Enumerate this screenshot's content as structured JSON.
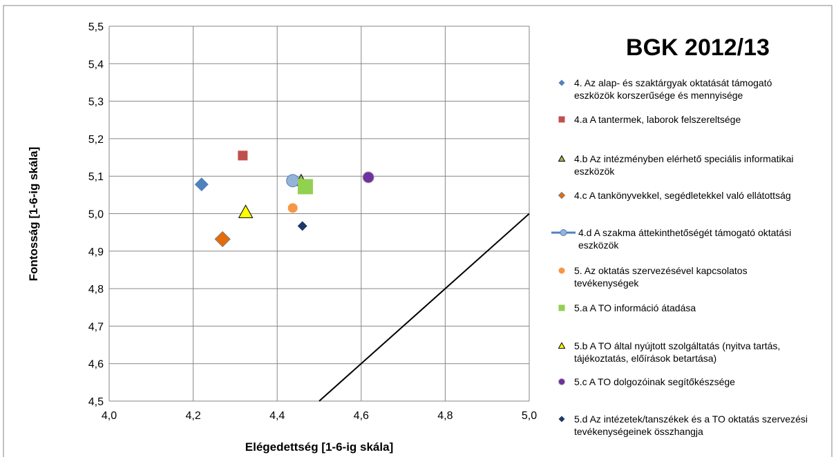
{
  "chart_data": {
    "type": "scatter",
    "title": "BGK 2012/13",
    "x_label": "Elégedettség [1-6-ig skála]",
    "y_label": "Fontosság [1-6-ig skála]",
    "xlim": [
      4.0,
      5.0
    ],
    "xticks": [
      {
        "value": 4.0,
        "label": "4,0"
      },
      {
        "value": 4.2,
        "label": "4,2"
      },
      {
        "value": 4.4,
        "label": "4,4"
      },
      {
        "value": 4.6,
        "label": "4,6"
      },
      {
        "value": 4.8,
        "label": "4,8"
      },
      {
        "value": 5.0,
        "label": "5,0"
      }
    ],
    "ylim": [
      4.5,
      5.5
    ],
    "yticks": [
      {
        "value": 4.5,
        "label": "4,5"
      },
      {
        "value": 4.6,
        "label": "4,6"
      },
      {
        "value": 4.7,
        "label": "4,7"
      },
      {
        "value": 4.8,
        "label": "4,8"
      },
      {
        "value": 4.9,
        "label": "4,9"
      },
      {
        "value": 5.0,
        "label": "5,0"
      },
      {
        "value": 5.1,
        "label": "5,1"
      },
      {
        "value": 5.2,
        "label": "5,2"
      },
      {
        "value": 5.3,
        "label": "5,3"
      },
      {
        "value": 5.4,
        "label": "5,4"
      },
      {
        "value": 5.5,
        "label": "5,5"
      }
    ],
    "grid": true,
    "legend": "right",
    "series": [
      {
        "name": "4. Az alap- és szaktárgyak oktatását támogató eszközök korszerűsége és mennyisége",
        "color": "#4f81bd",
        "marker": "diamond",
        "x": [
          4.22
        ],
        "values": [
          5.078
        ]
      },
      {
        "name": "4.a  A tantermek, laborok felszereltsége",
        "color": "#c0504d",
        "marker": "square",
        "x": [
          4.318
        ],
        "values": [
          5.155
        ]
      },
      {
        "name": "4.b  Az intézményben elérhető speciális informatikai eszközök",
        "color": "#9bbb59",
        "marker": "triangle",
        "x": [
          4.457
        ],
        "values": [
          5.088
        ]
      },
      {
        "name": "4.c  A tankönyvekkel, segédletekkel való ellátottság",
        "color": "#e46c0a",
        "marker": "diamond",
        "x": [
          4.27
        ],
        "values": [
          4.932
        ]
      },
      {
        "name": "4.d  A szakma áttekinthetőségét támogató oktatási eszközök",
        "color": "#95b3d7",
        "marker": "circle",
        "legend_line": true,
        "x": [
          4.437
        ],
        "values": [
          5.088
        ]
      },
      {
        "name": "5. Az oktatás szervezésével kapcsolatos tevékenységek",
        "color": "#f79646",
        "marker": "circle",
        "x": [
          4.437
        ],
        "values": [
          5.015
        ]
      },
      {
        "name": "5.a  A TO információ átadása",
        "color": "#92d050",
        "marker": "square",
        "x": [
          4.467
        ],
        "values": [
          5.072
        ]
      },
      {
        "name": "5.b  A TO által nyújtott szolgáltatás (nyitva tartás, tájékoztatás, előírások betartása)",
        "color": "#ffff00",
        "marker": "triangle",
        "x": [
          4.325
        ],
        "values": [
          5.004
        ]
      },
      {
        "name": "5.c  A TO dolgozóinak segítőkészsége",
        "color": "#7030a0",
        "marker": "circle",
        "x": [
          4.617
        ],
        "values": [
          5.097
        ]
      },
      {
        "name": "5.d  Az intézetek/tanszékek és a TO oktatás szervezési tevékenységeinek összhangja",
        "color": "#1f3864",
        "marker": "diamond",
        "x": [
          4.46
        ],
        "values": [
          4.967
        ]
      }
    ],
    "reference_line": {
      "color": "#000000",
      "x": [
        4.5,
        5.0
      ],
      "values": [
        4.5,
        5.0
      ]
    }
  }
}
